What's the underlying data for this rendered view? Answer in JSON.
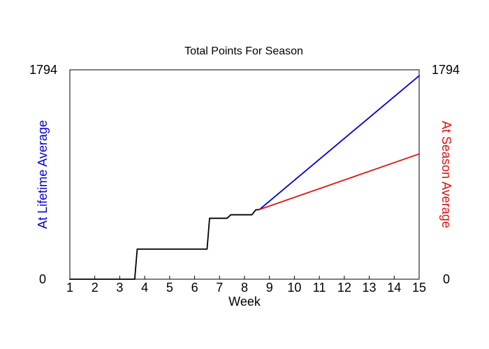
{
  "chart_data": {
    "type": "line",
    "title": "Total Points For Season",
    "xlabel": "Week",
    "ylabel_left": "At Lifetime Average",
    "ylabel_right": "At Season Average",
    "xlim": [
      1,
      15
    ],
    "ylim": [
      0,
      1794
    ],
    "x_ticks": [
      "1",
      "2",
      "3",
      "4",
      "5",
      "6",
      "7",
      "8",
      "9",
      "10",
      "11",
      "12",
      "13",
      "14",
      "15"
    ],
    "y_left_labels": [
      "0",
      "1794"
    ],
    "y_right_labels": [
      "0",
      "1794"
    ],
    "grid": false,
    "colors": {
      "actual": "#000000",
      "lifetime": "#0000cc",
      "season": "#dd1111",
      "ylabel_left": "#0000cc",
      "ylabel_right": "#dd1111"
    },
    "series": [
      {
        "key": "actual",
        "points": [
          [
            1,
            0
          ],
          [
            3.6,
            0
          ],
          [
            3.7,
            258
          ],
          [
            6.5,
            258
          ],
          [
            6.6,
            522
          ],
          [
            7.3,
            522
          ],
          [
            7.45,
            552
          ],
          [
            8.3,
            552
          ],
          [
            8.45,
            594
          ],
          [
            8.6,
            597
          ]
        ]
      },
      {
        "key": "lifetime",
        "points": [
          [
            8.6,
            597
          ],
          [
            15,
            1743
          ]
        ]
      },
      {
        "key": "season",
        "points": [
          [
            8.6,
            597
          ],
          [
            15,
            1073
          ]
        ]
      }
    ]
  }
}
